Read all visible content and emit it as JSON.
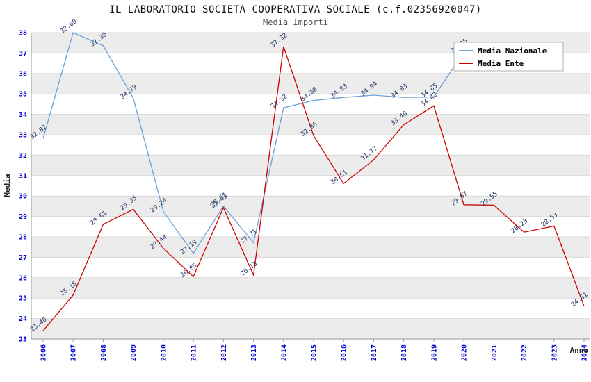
{
  "chart_data": {
    "type": "line",
    "title": "IL LABORATORIO SOCIETA COOPERATIVA SOCIALE (c.f.02356920047)",
    "subtitle": "Media Importi",
    "xlabel": "Anno",
    "ylabel": "Media",
    "ylim": [
      23,
      38
    ],
    "grid": true,
    "legend_position": "top-right",
    "categories": [
      "2006",
      "2007",
      "2008",
      "2009",
      "2010",
      "2011",
      "2012",
      "2013",
      "2014",
      "2015",
      "2016",
      "2017",
      "2018",
      "2019",
      "2020",
      "2021",
      "2022",
      "2023",
      "2024"
    ],
    "series": [
      {
        "name": "Media Nazionale",
        "color": "#6aa1d8",
        "values": [
          32.82,
          38.0,
          37.36,
          34.79,
          29.24,
          27.19,
          29.51,
          27.71,
          34.32,
          34.68,
          34.83,
          34.94,
          34.83,
          34.85,
          37.05,
          null,
          null,
          null,
          null
        ]
      },
      {
        "name": "Media Ente",
        "color": "#cc0000",
        "values": [
          23.4,
          25.15,
          28.61,
          29.35,
          27.44,
          26.05,
          29.43,
          26.13,
          37.32,
          32.96,
          30.61,
          31.77,
          33.49,
          34.42,
          29.57,
          29.55,
          28.23,
          28.53,
          24.61
        ]
      }
    ]
  },
  "style": {
    "axis_tick_color": "#0000cc",
    "point_label_color": "#223266",
    "band_color": "#ececec",
    "grid_color": "#d8d8d8",
    "axis_line_color": "#999999",
    "legend_border_color": "#b0b0b0"
  }
}
